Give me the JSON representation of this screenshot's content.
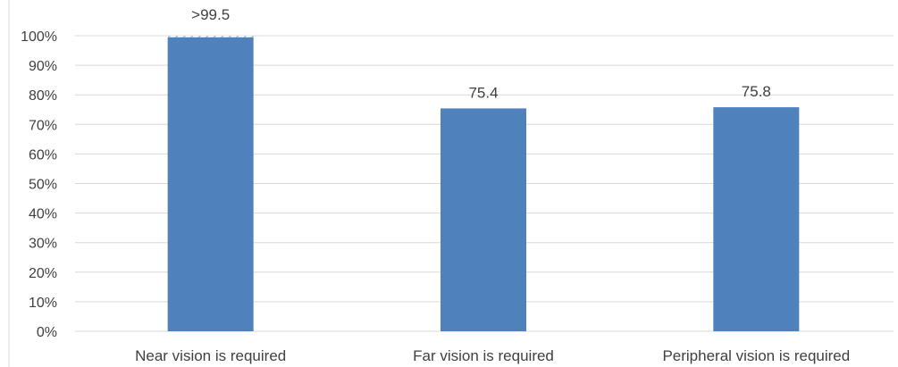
{
  "chart_data": {
    "type": "bar",
    "title": "",
    "xlabel": "",
    "ylabel": "",
    "categories": [
      "Near vision is required",
      "Far vision is required",
      "Peripheral vision is required"
    ],
    "values": [
      99.5,
      75.4,
      75.8
    ],
    "data_labels": [
      ">99.5",
      "75.4",
      "75.8"
    ],
    "ylim": [
      0,
      100
    ],
    "yticks": [
      0,
      10,
      20,
      30,
      40,
      50,
      60,
      70,
      80,
      90,
      100
    ],
    "ytick_labels": [
      "0%",
      "10%",
      "20%",
      "30%",
      "40%",
      "50%",
      "60%",
      "70%",
      "80%",
      "90%",
      "100%"
    ],
    "grid": true,
    "legend": "none",
    "bar_color": "#4f81bd",
    "hatch_above_first_bar": true,
    "hatch_color": "#9dc3e6"
  }
}
